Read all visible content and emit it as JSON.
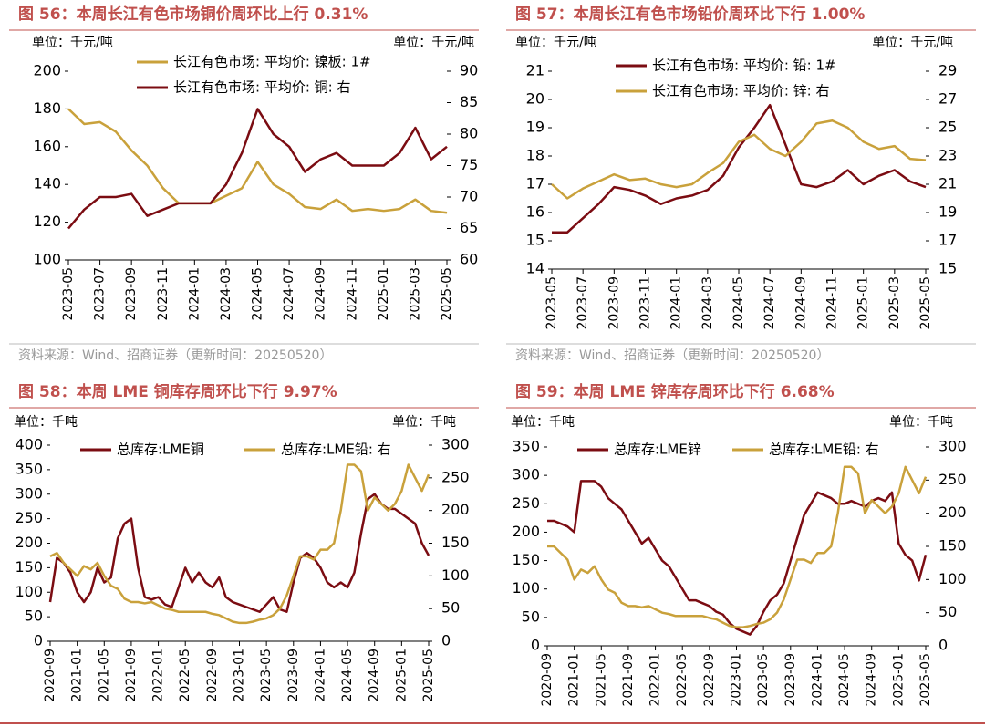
{
  "chart_data": [
    {
      "type": "line",
      "title": "图 56：本周长江有色市场铜价周环比上行 0.31%",
      "unit_left": "单位：千元/吨",
      "unit_right": "单位：千元/吨",
      "source": "资料来源：Wind、招商证券（更新时间：20250520）",
      "x": [
        "2023-05",
        "2023-06",
        "2023-07",
        "2023-08",
        "2023-09",
        "2023-10",
        "2023-11",
        "2023-12",
        "2024-01",
        "2024-02",
        "2024-03",
        "2024-04",
        "2024-05",
        "2024-06",
        "2024-07",
        "2024-08",
        "2024-09",
        "2024-10",
        "2024-11",
        "2024-12",
        "2025-01",
        "2025-02",
        "2025-03",
        "2025-04",
        "2025-05"
      ],
      "xticks": [
        "2023-05",
        "2023-07",
        "2023-09",
        "2023-11",
        "2024-01",
        "2024-03",
        "2024-05",
        "2024-07",
        "2024-09",
        "2024-11",
        "2025-01",
        "2025-03",
        "2025-05"
      ],
      "ylim": [
        100,
        200
      ],
      "yticks": [
        100,
        120,
        140,
        160,
        180,
        200
      ],
      "y2lim": [
        60,
        90
      ],
      "y2ticks": [
        60,
        65,
        70,
        75,
        80,
        85,
        90
      ],
      "series": [
        {
          "name": "长江有色市场: 平均价: 镍板: 1#",
          "color": "#c9a13b",
          "values": [
            180,
            172,
            173,
            168,
            158,
            150,
            138,
            130,
            130,
            130,
            134,
            138,
            152,
            140,
            135,
            128,
            127,
            132,
            126,
            127,
            126,
            127,
            132,
            126,
            125
          ]
        },
        {
          "name": "长江有色市场: 平均价: 铜: 右",
          "color": "#7b0c12",
          "axis": "y2",
          "values": [
            65,
            68,
            70,
            70,
            70.5,
            67,
            68,
            69,
            69,
            69,
            72,
            77,
            84,
            80,
            78,
            74,
            76,
            77,
            75,
            75,
            75,
            77,
            81,
            76,
            78
          ]
        }
      ]
    },
    {
      "type": "line",
      "title": "图 57：本周长江有色市场铅价周环比下行 1.00%",
      "unit_left": "单位：千元/吨",
      "unit_right": "单位：千元/吨",
      "source": "资料来源：Wind、招商证券（更新时间：20250520）",
      "x": [
        "2023-05",
        "2023-06",
        "2023-07",
        "2023-08",
        "2023-09",
        "2023-10",
        "2023-11",
        "2023-12",
        "2024-01",
        "2024-02",
        "2024-03",
        "2024-04",
        "2024-05",
        "2024-06",
        "2024-07",
        "2024-08",
        "2024-09",
        "2024-10",
        "2024-11",
        "2024-12",
        "2025-01",
        "2025-02",
        "2025-03",
        "2025-04",
        "2025-05"
      ],
      "xticks": [
        "2023-05",
        "2023-07",
        "2023-09",
        "2023-11",
        "2024-01",
        "2024-03",
        "2024-05",
        "2024-07",
        "2024-09",
        "2024-11",
        "2025-01",
        "2025-03",
        "2025-05"
      ],
      "ylim": [
        14,
        21
      ],
      "yticks": [
        14,
        15,
        16,
        17,
        18,
        19,
        20,
        21
      ],
      "y2lim": [
        15,
        29
      ],
      "y2ticks": [
        15,
        17,
        19,
        21,
        23,
        25,
        27,
        29
      ],
      "series": [
        {
          "name": "长江有色市场: 平均价: 铅: 1#",
          "color": "#7b0c12",
          "values": [
            15.3,
            15.3,
            15.8,
            16.3,
            16.9,
            16.8,
            16.6,
            16.3,
            16.5,
            16.6,
            16.8,
            17.3,
            18.3,
            19.0,
            19.8,
            18.4,
            17.0,
            16.9,
            17.1,
            17.5,
            17.0,
            17.3,
            17.5,
            17.1,
            16.9
          ]
        },
        {
          "name": "长江有色市场: 平均价: 锌: 右",
          "color": "#c9a13b",
          "axis": "y2",
          "values": [
            21,
            20,
            20.7,
            21.2,
            21.7,
            21.3,
            21.4,
            21.0,
            20.8,
            21.0,
            21.8,
            22.5,
            24.0,
            24.5,
            23.5,
            23.0,
            24,
            25.3,
            25.5,
            25,
            24,
            23.5,
            23.7,
            22.8,
            22.7
          ]
        }
      ]
    },
    {
      "type": "line",
      "title": "图 58：本周 LME 铜库存周环比下行 9.97%",
      "unit_left": "单位：千吨",
      "unit_right": "单位：千吨",
      "x": [
        "2020-09",
        "2020-10",
        "2020-11",
        "2020-12",
        "2021-01",
        "2021-02",
        "2021-03",
        "2021-04",
        "2021-05",
        "2021-06",
        "2021-07",
        "2021-08",
        "2021-09",
        "2021-10",
        "2021-11",
        "2021-12",
        "2022-01",
        "2022-02",
        "2022-03",
        "2022-04",
        "2022-05",
        "2022-06",
        "2022-07",
        "2022-08",
        "2022-09",
        "2022-10",
        "2022-11",
        "2022-12",
        "2023-01",
        "2023-02",
        "2023-03",
        "2023-04",
        "2023-05",
        "2023-06",
        "2023-07",
        "2023-08",
        "2023-09",
        "2023-10",
        "2023-11",
        "2023-12",
        "2024-01",
        "2024-02",
        "2024-03",
        "2024-04",
        "2024-05",
        "2024-06",
        "2024-07",
        "2024-08",
        "2024-09",
        "2024-10",
        "2024-11",
        "2024-12",
        "2025-01",
        "2025-02",
        "2025-03",
        "2025-04",
        "2025-05"
      ],
      "xticks": [
        "2020-09",
        "2021-01",
        "2021-05",
        "2021-09",
        "2022-01",
        "2022-05",
        "2022-09",
        "2023-01",
        "2023-05",
        "2023-09",
        "2024-01",
        "2024-05",
        "2024-09",
        "2025-01",
        "2025-05"
      ],
      "ylim": [
        0,
        400
      ],
      "yticks": [
        0,
        50,
        100,
        150,
        200,
        250,
        300,
        350,
        400
      ],
      "y2lim": [
        0,
        300
      ],
      "y2ticks": [
        0,
        50,
        100,
        150,
        200,
        250,
        300
      ],
      "series": [
        {
          "name": "总库存:LME铜",
          "color": "#7b0c12",
          "values": [
            80,
            170,
            160,
            140,
            100,
            80,
            100,
            150,
            120,
            130,
            210,
            240,
            250,
            150,
            90,
            85,
            90,
            75,
            70,
            110,
            150,
            120,
            140,
            120,
            110,
            130,
            90,
            80,
            75,
            70,
            65,
            60,
            75,
            90,
            65,
            60,
            120,
            170,
            180,
            170,
            150,
            120,
            110,
            120,
            110,
            140,
            220,
            290,
            300,
            280,
            270,
            270,
            260,
            250,
            240,
            200,
            175
          ]
        },
        {
          "name": "总库存:LME铅:  右",
          "color": "#c9a13b",
          "axis": "y2",
          "values": [
            130,
            135,
            120,
            110,
            100,
            115,
            110,
            120,
            100,
            85,
            80,
            65,
            60,
            60,
            58,
            60,
            55,
            50,
            48,
            45,
            45,
            45,
            45,
            45,
            42,
            40,
            35,
            30,
            28,
            28,
            30,
            33,
            35,
            40,
            50,
            70,
            100,
            130,
            130,
            125,
            140,
            140,
            150,
            200,
            270,
            270,
            260,
            200,
            220,
            210,
            200,
            210,
            230,
            270,
            250,
            230,
            255
          ]
        }
      ]
    },
    {
      "type": "line",
      "title": "图 59：本周 LME 锌库存周环比下行 6.68%",
      "unit_left": "单位：千吨",
      "unit_right": "单位：千吨",
      "x": [
        "2020-09",
        "2020-10",
        "2020-11",
        "2020-12",
        "2021-01",
        "2021-02",
        "2021-03",
        "2021-04",
        "2021-05",
        "2021-06",
        "2021-07",
        "2021-08",
        "2021-09",
        "2021-10",
        "2021-11",
        "2021-12",
        "2022-01",
        "2022-02",
        "2022-03",
        "2022-04",
        "2022-05",
        "2022-06",
        "2022-07",
        "2022-08",
        "2022-09",
        "2022-10",
        "2022-11",
        "2022-12",
        "2023-01",
        "2023-02",
        "2023-03",
        "2023-04",
        "2023-05",
        "2023-06",
        "2023-07",
        "2023-08",
        "2023-09",
        "2023-10",
        "2023-11",
        "2023-12",
        "2024-01",
        "2024-02",
        "2024-03",
        "2024-04",
        "2024-05",
        "2024-06",
        "2024-07",
        "2024-08",
        "2024-09",
        "2024-10",
        "2024-11",
        "2024-12",
        "2025-01",
        "2025-02",
        "2025-03",
        "2025-04",
        "2025-05"
      ],
      "xticks": [
        "2020-09",
        "2021-01",
        "2021-05",
        "2021-09",
        "2022-01",
        "2022-05",
        "2022-09",
        "2023-01",
        "2023-05",
        "2023-09",
        "2024-01",
        "2024-05",
        "2024-09",
        "2025-01",
        "2025-05"
      ],
      "ylim": [
        0,
        350
      ],
      "yticks": [
        0,
        50,
        100,
        150,
        200,
        250,
        300,
        350
      ],
      "y2lim": [
        0,
        300
      ],
      "y2ticks": [
        0,
        50,
        100,
        150,
        200,
        250,
        300
      ],
      "series": [
        {
          "name": "总库存:LME锌",
          "color": "#7b0c12",
          "values": [
            220,
            220,
            215,
            210,
            200,
            290,
            290,
            290,
            280,
            260,
            250,
            240,
            220,
            200,
            180,
            190,
            170,
            150,
            140,
            120,
            100,
            80,
            80,
            75,
            70,
            60,
            55,
            40,
            30,
            25,
            20,
            35,
            60,
            80,
            90,
            110,
            150,
            190,
            230,
            250,
            270,
            265,
            260,
            250,
            250,
            255,
            250,
            245,
            255,
            260,
            255,
            270,
            180,
            160,
            150,
            115,
            160
          ]
        },
        {
          "name": "总库存:LME铅:  右",
          "color": "#c9a13b",
          "axis": "y2",
          "values": [
            150,
            150,
            140,
            130,
            100,
            115,
            110,
            120,
            100,
            85,
            80,
            65,
            60,
            60,
            58,
            60,
            55,
            50,
            48,
            45,
            45,
            45,
            45,
            45,
            42,
            40,
            35,
            30,
            28,
            28,
            30,
            33,
            35,
            40,
            50,
            70,
            100,
            130,
            130,
            125,
            140,
            140,
            150,
            200,
            270,
            270,
            260,
            200,
            220,
            210,
            200,
            210,
            230,
            270,
            250,
            230,
            255
          ]
        }
      ]
    }
  ]
}
